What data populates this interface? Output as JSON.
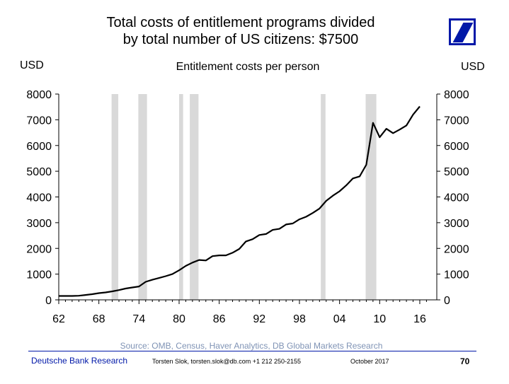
{
  "title_line1": "Total costs of entitlement programs divided",
  "title_line2": "by total number of US citizens: $7500",
  "left_unit": "USD",
  "right_unit": "USD",
  "source": "Source: OMB, Census, Haver Analytics, DB Global Markets Research",
  "footer": {
    "brand": "Deutsche Bank Research",
    "contact": "Torsten Slok, torsten.slok@db.com  +1 212 250-2155",
    "date": "October  2017",
    "page": "70"
  },
  "colors": {
    "line": "#000000",
    "recession": "#d9d9d9",
    "brand": "#0018a8",
    "source": "#7f93b5"
  },
  "logo_icon": "deutsche-bank-logo-icon",
  "chart_data": {
    "type": "line",
    "title": "Entitlement costs per person",
    "xlabel": "",
    "ylabel": "USD",
    "xlim": [
      1962,
      2017
    ],
    "ylim": [
      0,
      8000
    ],
    "x_tick_labels": [
      "62",
      "68",
      "74",
      "80",
      "86",
      "92",
      "98",
      "04",
      "10",
      "16"
    ],
    "x_tick_values": [
      1962,
      1968,
      1974,
      1980,
      1986,
      1992,
      1998,
      2004,
      2010,
      2016
    ],
    "y_ticks": [
      0,
      1000,
      2000,
      3000,
      4000,
      5000,
      6000,
      7000,
      8000
    ],
    "grid": false,
    "recessions": [
      [
        1969.9,
        1970.9
      ],
      [
        1973.9,
        1975.2
      ],
      [
        1980.0,
        1980.6
      ],
      [
        1981.6,
        1982.9
      ],
      [
        2001.2,
        2001.9
      ],
      [
        2007.9,
        2009.5
      ]
    ],
    "series": [
      {
        "x": [
          1962,
          1963,
          1964,
          1965,
          1966,
          1967,
          1968,
          1969,
          1970,
          1971,
          1972,
          1973,
          1974,
          1975,
          1976,
          1977,
          1978,
          1979,
          1980,
          1981,
          1982,
          1983,
          1984,
          1985,
          1986,
          1987,
          1988,
          1989,
          1990,
          1991,
          1992,
          1993,
          1994,
          1995,
          1996,
          1997,
          1998,
          1999,
          2000,
          2001,
          2002,
          2003,
          2004,
          2005,
          2006,
          2007,
          2008,
          2009,
          2010,
          2011,
          2012,
          2013,
          2014,
          2015,
          2016
        ],
        "values": [
          150,
          150,
          150,
          160,
          190,
          220,
          260,
          290,
          330,
          380,
          440,
          480,
          520,
          700,
          780,
          850,
          920,
          1000,
          1150,
          1320,
          1450,
          1550,
          1530,
          1700,
          1730,
          1730,
          1830,
          1980,
          2270,
          2360,
          2520,
          2560,
          2720,
          2760,
          2930,
          2970,
          3130,
          3230,
          3380,
          3550,
          3850,
          4050,
          4220,
          4450,
          4720,
          4800,
          5250,
          6880,
          6320,
          6650,
          6480,
          6620,
          6780,
          7200,
          7520
        ]
      }
    ]
  }
}
